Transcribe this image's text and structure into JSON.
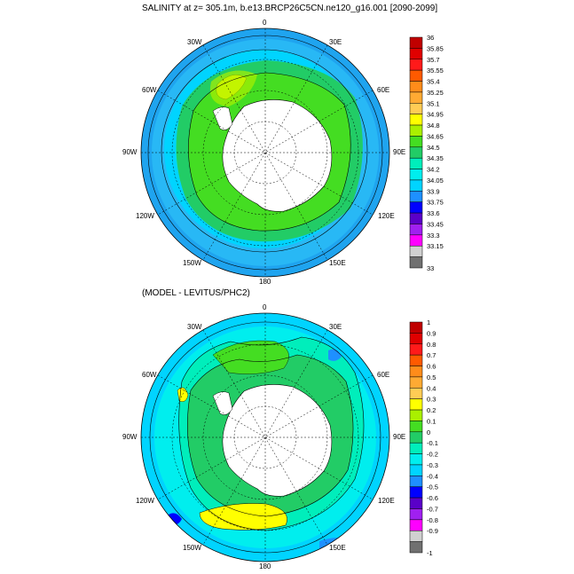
{
  "panels": [
    {
      "id": "top",
      "title": "SALINITY at z= 305.1m, b.e13.BRCP26C5CN.ne120_g16.001 [2090-2099]",
      "lon_labels": {
        "n": "0",
        "s": "180",
        "w": "90W",
        "e": "90E",
        "nw1": "30W",
        "nw2": "60W",
        "sw1": "120W",
        "sw2": "150W",
        "ne1": "30E",
        "ne2": "60E",
        "se1": "120E",
        "se2": "150E"
      },
      "colorbar": {
        "labels": [
          "36",
          "35.85",
          "35.7",
          "35.55",
          "35.4",
          "35.25",
          "35.1",
          "34.95",
          "34.8",
          "34.65",
          "34.5",
          "34.35",
          "34.2",
          "34.05",
          "33.9",
          "33.75",
          "33.6",
          "33.45",
          "33.3",
          "33.15",
          "33"
        ],
        "colors": [
          "#c00000",
          "#e00000",
          "#ff1a1a",
          "#ff5a00",
          "#ff8c1a",
          "#ffaa33",
          "#ffcc55",
          "#ffff00",
          "#aaf000",
          "#44dd22",
          "#22cc66",
          "#00eebb",
          "#00eeee",
          "#00d4ff",
          "#1e90ff",
          "#0000ff",
          "#5a00c8",
          "#a020f0",
          "#ff00ff",
          "#d0d0d0",
          "#707070"
        ]
      }
    },
    {
      "id": "bottom",
      "title": "(MODEL - LEVITUS/PHC2)",
      "lon_labels": {
        "n": "0",
        "s": "180",
        "w": "90W",
        "e": "90E",
        "nw1": "30W",
        "nw2": "60W",
        "sw1": "120W",
        "sw2": "150W",
        "ne1": "30E",
        "ne2": "60E",
        "se1": "120E",
        "se2": "150E"
      },
      "colorbar": {
        "labels": [
          "1",
          "0.9",
          "0.8",
          "0.7",
          "0.6",
          "0.5",
          "0.4",
          "0.3",
          "0.2",
          "0.1",
          "0",
          "-0.1",
          "-0.2",
          "-0.3",
          "-0.4",
          "-0.5",
          "-0.6",
          "-0.7",
          "-0.8",
          "-0.9",
          "-1"
        ],
        "colors": [
          "#c00000",
          "#e00000",
          "#ff1a1a",
          "#ff5a00",
          "#ff8c1a",
          "#ffaa33",
          "#ffcc55",
          "#ffff00",
          "#aaf000",
          "#44dd22",
          "#22cc66",
          "#00eebb",
          "#00eeee",
          "#00d4ff",
          "#1e90ff",
          "#0000ff",
          "#5a00c8",
          "#a020f0",
          "#ff00ff",
          "#d0d0d0",
          "#707070"
        ]
      }
    }
  ]
}
